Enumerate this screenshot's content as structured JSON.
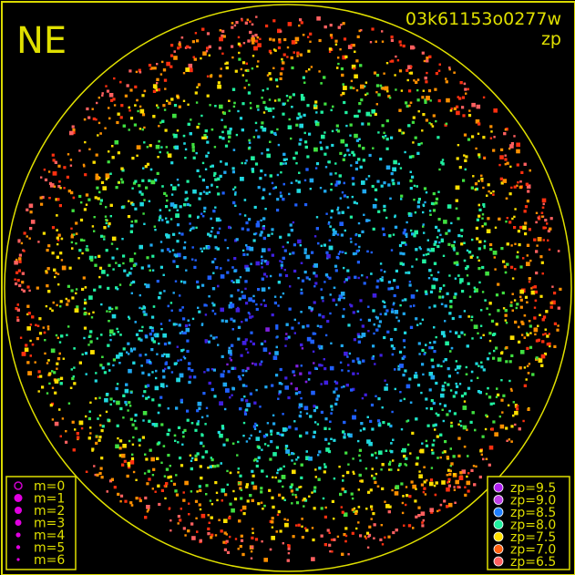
{
  "chart_data": {
    "type": "scatter",
    "title": "03k61153o0277w",
    "subtitle": "zp",
    "orientation_label": "NE",
    "colors": {
      "frame": "#e0e000",
      "background": "#000000"
    },
    "size_legend": [
      {
        "label": "m=0",
        "style": "open-circle"
      },
      {
        "label": "m=1"
      },
      {
        "label": "m=2"
      },
      {
        "label": "m=3"
      },
      {
        "label": "m=4"
      },
      {
        "label": "m=5"
      },
      {
        "label": "m=6"
      }
    ],
    "color_legend": [
      {
        "label": "zp=9.5",
        "zp": 9.5,
        "color": "#b020f0"
      },
      {
        "label": "zp=9.0",
        "zp": 9.0,
        "color": "#c040e8"
      },
      {
        "label": "zp=8.5",
        "zp": 8.5,
        "color": "#2080ff"
      },
      {
        "label": "zp=8.0",
        "zp": 8.0,
        "color": "#20f0a0"
      },
      {
        "label": "zp=7.5",
        "zp": 7.5,
        "color": "#ffe000"
      },
      {
        "label": "zp=7.0",
        "zp": 7.0,
        "color": "#ff6010"
      },
      {
        "label": "zp=6.5",
        "zp": 6.5,
        "color": "#ff6060"
      }
    ],
    "legend_placement": [
      "bottom-left",
      "bottom-right"
    ]
  }
}
